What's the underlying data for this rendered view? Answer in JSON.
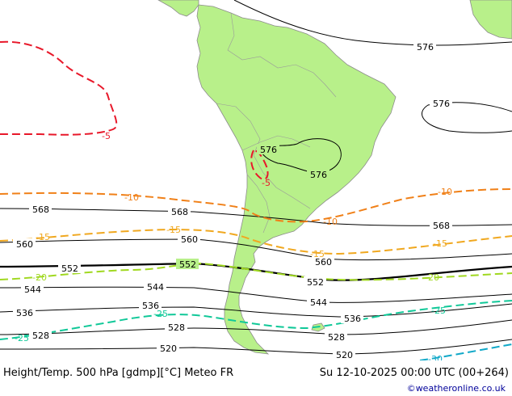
{
  "title": "Height/Temp. 500 hPa [gdmp][°C] Meteo FR",
  "valid_time": "Su 12-10-2025 00:00 UTC (00+264)",
  "credit": "©weatheronline.co.uk",
  "colors": {
    "land": "#b8f08a",
    "coast": "#8c8c8c",
    "height_contour": "#000000",
    "t_minus5": "#e8182a",
    "t_minus10": "#f08018",
    "t_minus15": "#f0a820",
    "t_minus20": "#a0d820",
    "t_minus25": "#10c898",
    "t_minus30": "#10a8c8"
  },
  "height_labels": {
    "h576_a": "576",
    "h576_b": "576",
    "h576_c": "576",
    "h576_d": "576",
    "h568_a": "568",
    "h568_b": "568",
    "h568_c": "568",
    "h560_a": "560",
    "h560_b": "560",
    "h560_c": "560",
    "h552_a": "552",
    "h552_b": "552",
    "h552_c": "552",
    "h544_a": "544",
    "h544_b": "544",
    "h544_c": "544",
    "h536_a": "536",
    "h536_b": "536",
    "h536_c": "536",
    "h528_a": "528",
    "h528_b": "528",
    "h528_c": "528",
    "h520_a": "520",
    "h520_b": "520"
  },
  "temp_labels": {
    "t5_a": "-5",
    "t5_b": "-5",
    "t10_a": "-10",
    "t10_b": "-10",
    "t10_c": "-10",
    "t15_a": "-15",
    "t15_b": "-15",
    "t15_c": "-15",
    "t15_d": "-15",
    "t20_a": "-20",
    "t20_b": "-20",
    "t25_a": "-25",
    "t25_b": "-25",
    "t25_c": "-25",
    "t30_a": "-30"
  }
}
